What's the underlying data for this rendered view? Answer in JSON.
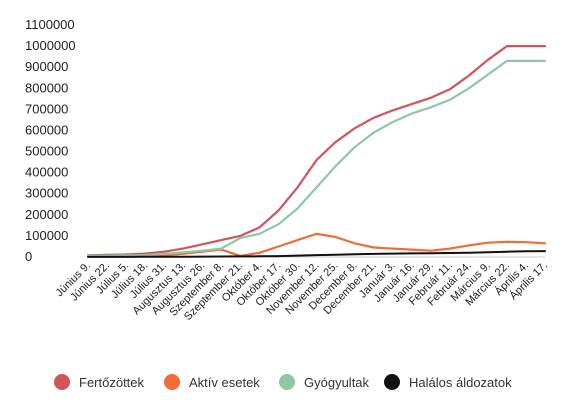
{
  "chart_data": {
    "type": "line",
    "title": "",
    "xlabel": "",
    "ylabel": "",
    "ylim": [
      0,
      1100000
    ],
    "grid": false,
    "legend_position": "bottom",
    "y_ticks": [
      "0",
      "100000",
      "200000",
      "300000",
      "400000",
      "500000",
      "600000",
      "700000",
      "800000",
      "900000",
      "1000000",
      "1100000"
    ],
    "x_tick_labels": [
      "Június 9.",
      "Június 22.",
      "Július 5.",
      "Július 18.",
      "Július 31.",
      "Augusztus 13.",
      "Augusztus 26.",
      "Szeptember 8.",
      "Szeptember 21.",
      "Október 4.",
      "Október 17.",
      "Október 30.",
      "November 12.",
      "November 25.",
      "December 8.",
      "December 21.",
      "Január 3.",
      "Január 16.",
      "Január 29.",
      "Február 11.",
      "Február 24.",
      "Március 9.",
      "Március 22.",
      "Április 4.",
      "Április 17."
    ],
    "series": [
      {
        "name": "Fertőzöttek",
        "color": "#d45358",
        "values": [
          8000,
          10000,
          12000,
          16000,
          25000,
          40000,
          60000,
          80000,
          100000,
          140000,
          220000,
          330000,
          460000,
          545000,
          610000,
          660000,
          695000,
          725000,
          755000,
          795000,
          860000,
          935000,
          1000000,
          1000000,
          1000000
        ]
      },
      {
        "name": "Aktív esetek",
        "color": "#f26b38",
        "values": [
          3000,
          3500,
          4000,
          5000,
          8000,
          15000,
          25000,
          35000,
          5000,
          20000,
          50000,
          80000,
          110000,
          95000,
          65000,
          45000,
          40000,
          35000,
          30000,
          40000,
          55000,
          68000,
          72000,
          70000,
          65000
        ]
      },
      {
        "name": "Gyógyultak",
        "color": "#8ec7a6",
        "values": [
          5000,
          6000,
          7000,
          9000,
          15000,
          22000,
          30000,
          40000,
          90000,
          110000,
          155000,
          230000,
          330000,
          430000,
          520000,
          590000,
          640000,
          680000,
          710000,
          745000,
          800000,
          865000,
          930000,
          930000,
          930000
        ]
      },
      {
        "name": "Halálos áldozatok",
        "color": "#111111",
        "values": [
          500,
          600,
          700,
          800,
          1000,
          1500,
          2000,
          2500,
          3000,
          3500,
          4500,
          6500,
          9000,
          11000,
          13000,
          14500,
          16000,
          17000,
          18000,
          19000,
          20500,
          22500,
          25000,
          27500,
          28000
        ]
      }
    ]
  }
}
